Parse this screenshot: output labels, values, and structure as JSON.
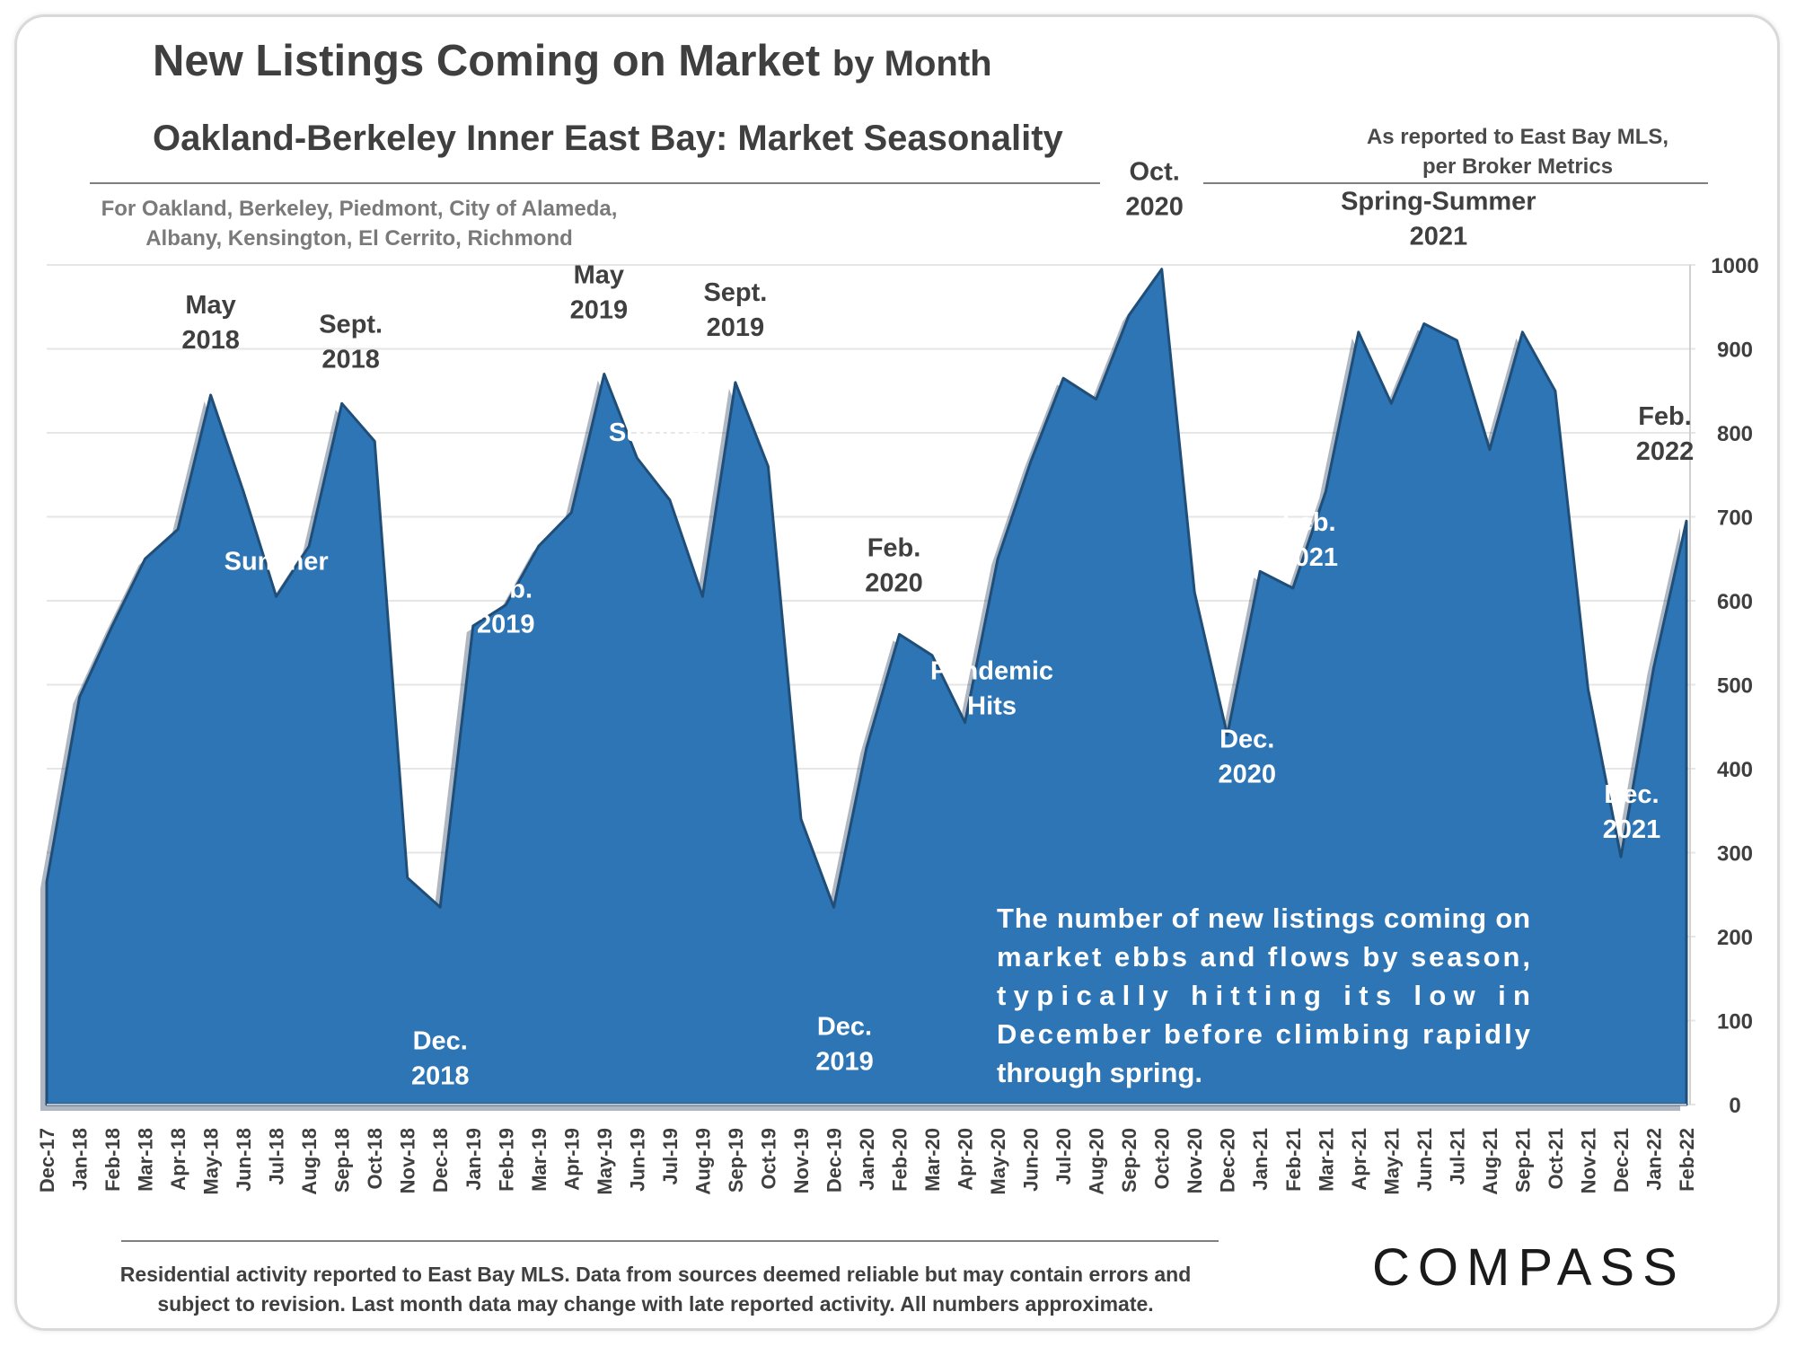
{
  "header": {
    "title_main": "New Listings Coming on Market",
    "title_suffix": "by Month",
    "subtitle": "Oakland-Berkeley Inner East Bay: Market Seasonality",
    "source_note": "As reported to East Bay MLS, per Broker Metrics",
    "region_note": "For Oakland, Berkeley, Piedmont, City of Alameda, Albany, Kensington, El Cerrito, Richmond"
  },
  "footer": {
    "note": "Residential activity reported to East Bay MLS. Data from sources deemed reliable but may contain errors and subject to revision. Last month data may change with late reported activity. All numbers approximate.",
    "logo": "COMPASS"
  },
  "colors": {
    "area_fill": "#2e75b6",
    "area_edge": "#1f4e79",
    "annotation_dark": "#3f3f3f",
    "annotation_light": "#ffffff",
    "grid": "#e6e6e6"
  },
  "chart_data": {
    "type": "area",
    "x": [
      "Dec-17",
      "Jan-18",
      "Feb-18",
      "Mar-18",
      "Apr-18",
      "May-18",
      "Jun-18",
      "Jul-18",
      "Aug-18",
      "Sep-18",
      "Oct-18",
      "Nov-18",
      "Dec-18",
      "Jan-19",
      "Feb-19",
      "Mar-19",
      "Apr-19",
      "May-19",
      "Jun-19",
      "Jul-19",
      "Aug-19",
      "Sep-19",
      "Oct-19",
      "Nov-19",
      "Dec-19",
      "Jan-20",
      "Feb-20",
      "Mar-20",
      "Apr-20",
      "May-20",
      "Jun-20",
      "Jul-20",
      "Aug-20",
      "Sep-20",
      "Oct-20",
      "Nov-20",
      "Dec-20",
      "Jan-21",
      "Feb-21",
      "Mar-21",
      "Apr-21",
      "May-21",
      "Jun-21",
      "Jul-21",
      "Aug-21",
      "Sep-21",
      "Oct-21",
      "Nov-21",
      "Dec-21",
      "Jan-22",
      "Feb-22"
    ],
    "series": [
      {
        "values": [
          265,
          485,
          570,
          650,
          685,
          845,
          730,
          605,
          665,
          835,
          790,
          270,
          235,
          570,
          595,
          665,
          705,
          870,
          770,
          720,
          605,
          860,
          760,
          340,
          235,
          425,
          560,
          535,
          455,
          650,
          765,
          865,
          840,
          940,
          995,
          610,
          440,
          635,
          615,
          730,
          920,
          835,
          930,
          910,
          780,
          920,
          850,
          495,
          295,
          520,
          695
        ]
      }
    ],
    "ylim": [
      0,
      1000
    ],
    "yticks": [
      "0",
      "100",
      "200",
      "300",
      "400",
      "500",
      "600",
      "700",
      "800",
      "900",
      "1000"
    ],
    "y_axis_side": "right",
    "grid": true,
    "annotations": [
      {
        "lines": [
          "May",
          "2018"
        ],
        "anchor": "May-18",
        "dy": -6,
        "tone": "dark"
      },
      {
        "lines": [
          "Sept.",
          "2018"
        ],
        "anchor": "Sep-18",
        "dy": -6,
        "tone": "dark"
      },
      {
        "lines": [
          "Summer"
        ],
        "anchor": "Jul-18",
        "dy": 0,
        "tone": "light"
      },
      {
        "lines": [
          "Dec.",
          "2018"
        ],
        "anchor": "Dec-18",
        "dy": 0,
        "tone": "light"
      },
      {
        "lines": [
          "Feb.",
          "2019"
        ],
        "anchor": "Feb-19",
        "dy": 0,
        "tone": "light"
      },
      {
        "lines": [
          "May",
          "2019"
        ],
        "anchor": "May-19",
        "dy": -6,
        "tone": "dark"
      },
      {
        "lines": [
          "Sept.",
          "2019"
        ],
        "anchor": "Sep-19",
        "dy": -6,
        "tone": "dark"
      },
      {
        "lines": [
          "Summer"
        ],
        "anchor": "Jul-19",
        "dy": 0,
        "tone": "light"
      },
      {
        "lines": [
          "Dec.",
          "2019"
        ],
        "anchor": "Dec-19",
        "dy": 0,
        "tone": "light"
      },
      {
        "lines": [
          "Feb.",
          "2020"
        ],
        "anchor": "Feb-20",
        "dy": -6,
        "tone": "dark"
      },
      {
        "lines": [
          "Pandemic",
          "Hits"
        ],
        "anchor": "Apr-20",
        "dy": 0,
        "tone": "light"
      },
      {
        "lines": [
          "Oct.",
          "2020"
        ],
        "anchor": "Oct-20",
        "dy": -6,
        "tone": "dark"
      },
      {
        "lines": [
          "Dec.",
          "2020"
        ],
        "anchor": "Dec-20",
        "dy": 0,
        "tone": "light"
      },
      {
        "lines": [
          "Feb.",
          "2021"
        ],
        "anchor": "Feb-21",
        "dy": 0,
        "tone": "light"
      },
      {
        "lines": [
          "Spring-Summer",
          "2021"
        ],
        "anchor": "Jun-21",
        "dy": -6,
        "tone": "dark"
      },
      {
        "lines": [
          "Dec.",
          "2021"
        ],
        "anchor": "Dec-21",
        "dy": 0,
        "tone": "light"
      },
      {
        "lines": [
          "Feb.",
          "2022"
        ],
        "anchor": "Feb-22",
        "dy": -6,
        "tone": "dark"
      }
    ],
    "callout": "The number of new listings coming on market ebbs and flows by season, typically hitting its low in December before climbing rapidly through spring."
  }
}
